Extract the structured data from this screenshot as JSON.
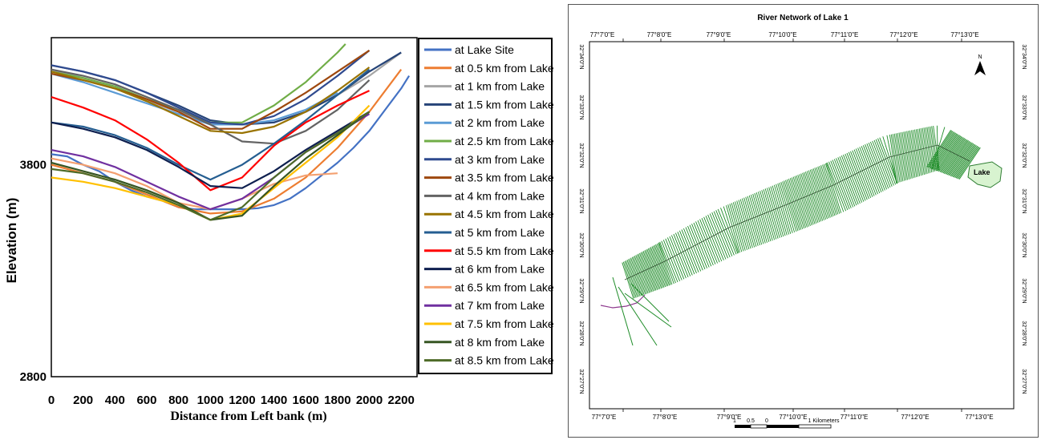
{
  "chart_data": {
    "type": "line",
    "title": "",
    "xlabel": "Distance from Left bank (m)",
    "ylabel": "Elevation (m)",
    "xlim": [
      0,
      2300
    ],
    "ylim": [
      2800,
      4400
    ],
    "x_ticks": [
      "0",
      "200",
      "400",
      "600",
      "800",
      "1000",
      "1200",
      "1400",
      "1600",
      "1800",
      "2000",
      "2200"
    ],
    "x_tick_values": [
      0,
      200,
      400,
      600,
      800,
      1000,
      1200,
      1400,
      1600,
      1800,
      2000,
      2200
    ],
    "y_ticks": [
      "2800",
      "3800"
    ],
    "y_tick_values": [
      2800,
      3800
    ],
    "grid": false,
    "legend_position": "right",
    "series": [
      {
        "name": "at Lake Site",
        "color": "#4472C4",
        "x": [
          0,
          100,
          200,
          300,
          400,
          500,
          600,
          700,
          800,
          900,
          1000,
          1100,
          1200,
          1300,
          1400,
          1500,
          1600,
          1700,
          1800,
          1900,
          2000,
          2100,
          2200,
          2250
        ],
        "y": [
          3850,
          3840,
          3800,
          3770,
          3720,
          3680,
          3650,
          3630,
          3600,
          3590,
          3590,
          3590,
          3590,
          3595,
          3610,
          3640,
          3690,
          3750,
          3810,
          3880,
          3960,
          4060,
          4160,
          4220
        ]
      },
      {
        "name": "at 0.5 km from Lake",
        "color": "#ED7D31",
        "x": [
          0,
          200,
          400,
          600,
          800,
          1000,
          1200,
          1400,
          1600,
          1800,
          2000,
          2200
        ],
        "y": [
          3800,
          3760,
          3720,
          3660,
          3600,
          3570,
          3580,
          3640,
          3740,
          3880,
          4050,
          4250
        ]
      },
      {
        "name": "at 1 km from Lake",
        "color": "#A5A5A5",
        "x": [
          0,
          200,
          400,
          600,
          800,
          1000,
          1200,
          1400,
          1600,
          1800,
          2000,
          2200
        ],
        "y": [
          4250,
          4210,
          4160,
          4100,
          4050,
          3990,
          3990,
          4000,
          4050,
          4130,
          4220,
          4330
        ]
      },
      {
        "name": "at 1.5 km from Lake",
        "color": "#264478",
        "x": [
          0,
          200,
          400,
          600,
          800,
          1000,
          1200,
          1400,
          1600,
          1800,
          2000,
          2200
        ],
        "y": [
          4270,
          4240,
          4200,
          4140,
          4080,
          4010,
          3990,
          4000,
          4050,
          4130,
          4240,
          4330
        ]
      },
      {
        "name": "at 2 km from Lake",
        "color": "#5B9BD5",
        "x": [
          0,
          200,
          400,
          600,
          800,
          1000,
          1200,
          1400,
          1600,
          1800
        ],
        "y": [
          4230,
          4190,
          4140,
          4090,
          4040,
          3990,
          3990,
          4010,
          4060,
          4140
        ]
      },
      {
        "name": "at 2.5 km from Lake",
        "color": "#70AD47",
        "x": [
          0,
          200,
          400,
          600,
          800,
          1000,
          1200,
          1400,
          1600,
          1800,
          1850
        ],
        "y": [
          4240,
          4210,
          4170,
          4110,
          4060,
          4000,
          4000,
          4080,
          4190,
          4330,
          4370
        ]
      },
      {
        "name": "at 3 km from Lake",
        "color": "#2F4A8F",
        "x": [
          0,
          200,
          400,
          600,
          800,
          1000,
          1200,
          1400,
          1600,
          1800,
          2000
        ],
        "y": [
          4270,
          4240,
          4200,
          4140,
          4070,
          4000,
          3990,
          4030,
          4110,
          4220,
          4340
        ]
      },
      {
        "name": "at 3.5 km from Lake",
        "color": "#9E480E",
        "x": [
          0,
          200,
          400,
          600,
          800,
          1000,
          1200,
          1400,
          1600,
          1800,
          2000
        ],
        "y": [
          4230,
          4200,
          4160,
          4110,
          4050,
          3970,
          3970,
          4050,
          4140,
          4240,
          4340
        ]
      },
      {
        "name": "at 4 km from Lake",
        "color": "#636363",
        "x": [
          0,
          200,
          400,
          600,
          800,
          1000,
          1200,
          1400,
          1600,
          1800,
          2000
        ],
        "y": [
          4250,
          4220,
          4180,
          4120,
          4060,
          3990,
          3910,
          3900,
          3960,
          4060,
          4200
        ]
      },
      {
        "name": "at 4.5 km from Lake",
        "color": "#997300",
        "x": [
          0,
          200,
          400,
          600,
          800,
          1000,
          1200,
          1400,
          1600,
          1800,
          2000
        ],
        "y": [
          4240,
          4200,
          4160,
          4100,
          4030,
          3960,
          3950,
          3980,
          4050,
          4150,
          4260
        ]
      },
      {
        "name": "at 5 km from Lake",
        "color": "#255E91",
        "x": [
          0,
          200,
          400,
          600,
          800,
          1000,
          1200,
          1400,
          1600,
          1800,
          2000
        ],
        "y": [
          4000,
          3980,
          3940,
          3880,
          3800,
          3730,
          3800,
          3900,
          4010,
          4130,
          4250
        ]
      },
      {
        "name": "at 5.5 km from Lake",
        "color": "#FF0000",
        "x": [
          0,
          200,
          400,
          600,
          800,
          1000,
          1200,
          1400,
          1600,
          1800,
          2000
        ],
        "y": [
          4120,
          4070,
          4010,
          3920,
          3810,
          3680,
          3740,
          3890,
          4000,
          4080,
          4150
        ]
      },
      {
        "name": "at 6 km from Lake",
        "color": "#0E1F4F",
        "x": [
          0,
          200,
          400,
          600,
          800,
          1000,
          1200,
          1400,
          1600,
          1800,
          2000
        ],
        "y": [
          4000,
          3970,
          3930,
          3870,
          3790,
          3700,
          3690,
          3770,
          3870,
          3960,
          4050
        ]
      },
      {
        "name": "at 6.5 km from Lake",
        "color": "#F4A070",
        "x": [
          0,
          200,
          400,
          600,
          800,
          1000,
          1200,
          1400,
          1600,
          1800
        ],
        "y": [
          3830,
          3800,
          3760,
          3700,
          3620,
          3590,
          3640,
          3710,
          3750,
          3760
        ]
      },
      {
        "name": "at 7 km from Lake",
        "color": "#7030A0",
        "x": [
          0,
          200,
          400,
          600,
          800,
          1000,
          1200,
          1400,
          1600,
          1800,
          2000
        ],
        "y": [
          3870,
          3840,
          3790,
          3720,
          3650,
          3590,
          3640,
          3740,
          3860,
          3950,
          4040
        ]
      },
      {
        "name": "at 7.5 km from Lake",
        "color": "#FFC000",
        "x": [
          0,
          200,
          400,
          600,
          800,
          1000,
          1200,
          1400,
          1600,
          1800,
          2000
        ],
        "y": [
          3740,
          3720,
          3690,
          3650,
          3610,
          3540,
          3570,
          3690,
          3810,
          3930,
          4080
        ]
      },
      {
        "name": "at 8 km from Lake",
        "color": "#375623",
        "x": [
          0,
          200,
          400,
          600,
          800,
          1000,
          1200,
          1400,
          1600,
          1800,
          2000
        ],
        "y": [
          3810,
          3770,
          3730,
          3680,
          3620,
          3540,
          3560,
          3700,
          3830,
          3940,
          4050
        ]
      },
      {
        "name": "at 8.5 km from Lake",
        "color": "#4E6B28",
        "x": [
          0,
          200,
          400,
          600,
          800,
          1000,
          1200,
          1400,
          1600,
          1800,
          2000
        ],
        "y": [
          3780,
          3760,
          3720,
          3670,
          3610,
          3540,
          3600,
          3740,
          3860,
          3950,
          4050
        ]
      }
    ]
  },
  "map": {
    "title": "River Network of Lake 1",
    "top_labels": [
      "77°7'0\"E",
      "77°8'0\"E",
      "77°9'0\"E",
      "77°10'0\"E",
      "77°11'0\"E",
      "77°12'0\"E",
      "77°13'0\"E"
    ],
    "bottom_labels": [
      "77°7'0\"E",
      "77°8'0\"E",
      "77°9'0\"E",
      "77°10'0\"E",
      "77°11'0\"E",
      "77°12'0\"E",
      "77°13'0\"E"
    ],
    "left_labels": [
      "32°34'0\"N",
      "32°33'0\"N",
      "32°32'0\"N",
      "32°31'0\"N",
      "32°30'0\"N",
      "32°29'0\"N",
      "32°28'0\"N",
      "32°27'0\"N"
    ],
    "right_labels": [
      "32°34'0\"N",
      "32°33'0\"N",
      "32°32'0\"N",
      "32°31'0\"N",
      "32°30'0\"N",
      "32°29'0\"N",
      "32°28'0\"N",
      "32°27'0\"N"
    ],
    "lake_label": "Lake",
    "north_label": "N",
    "scale_labels": [
      "1",
      "0.5",
      "0",
      "1 Kilometers"
    ],
    "colors": {
      "network": "#1E8C28",
      "lake": "#D8F3D0",
      "lake_stroke": "#2E7D32",
      "stream": "#8E3A8E"
    }
  }
}
